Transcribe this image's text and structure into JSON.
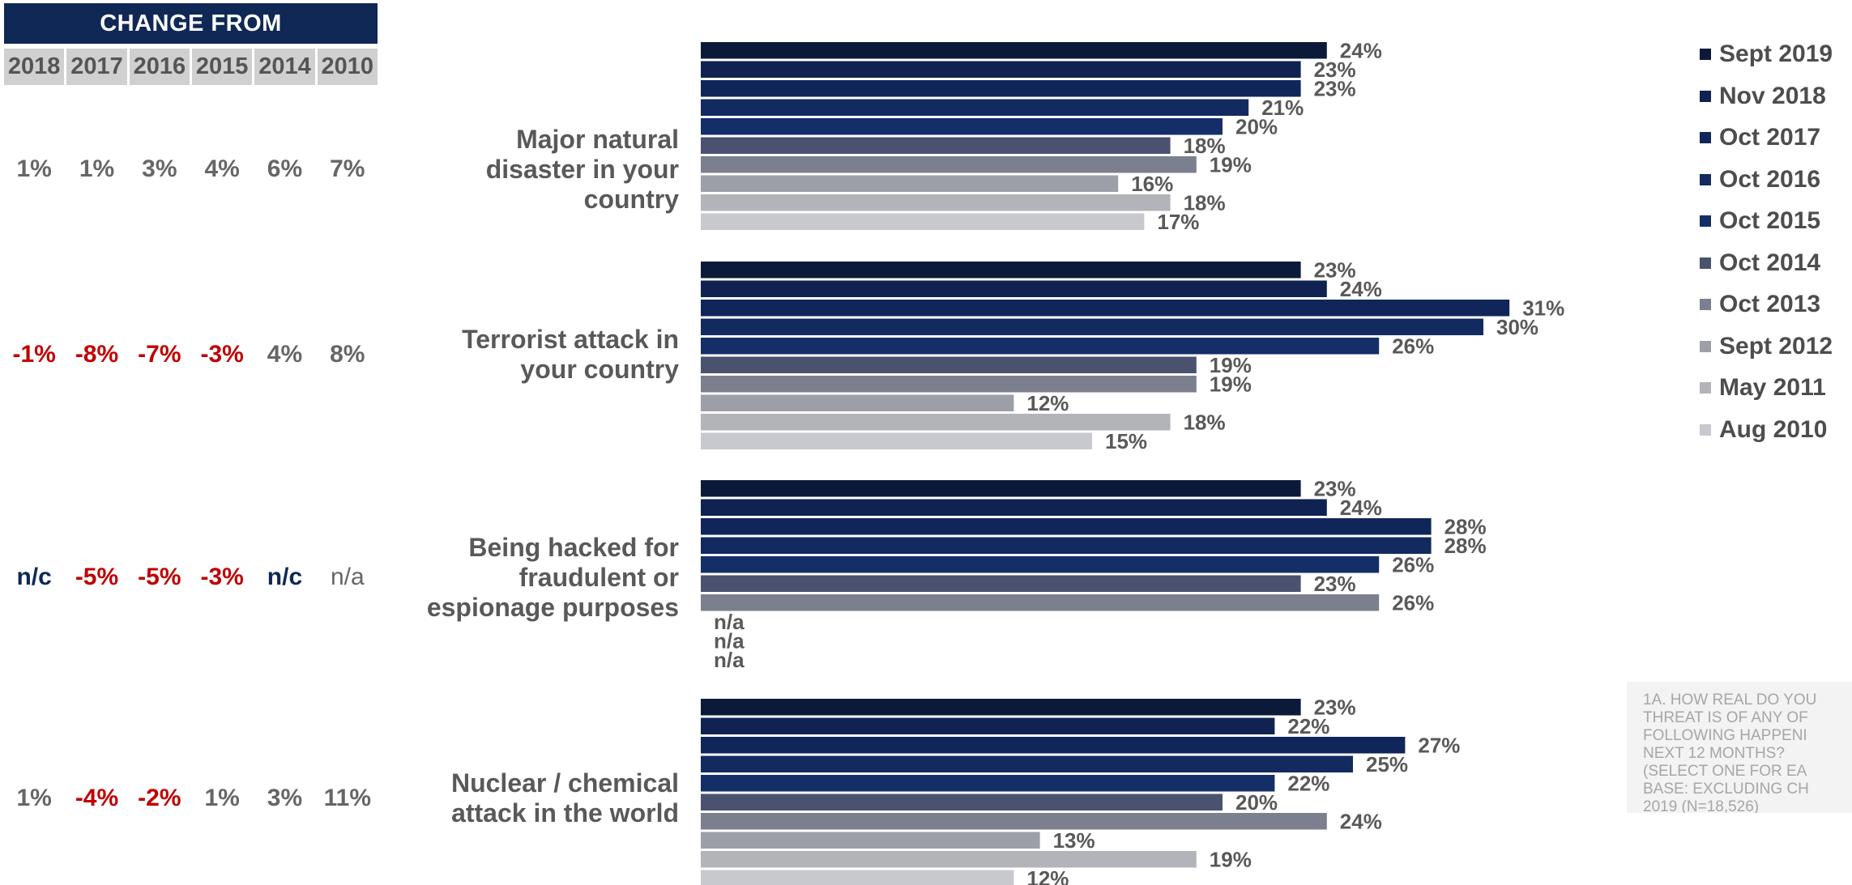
{
  "change_table": {
    "header": "CHANGE FROM",
    "years": [
      "2018",
      "2017",
      "2016",
      "2015",
      "2014",
      "2010"
    ],
    "rows": [
      {
        "cells": [
          {
            "text": "1%",
            "color": "#666666"
          },
          {
            "text": "1%",
            "color": "#666666"
          },
          {
            "text": "3%",
            "color": "#666666"
          },
          {
            "text": "4%",
            "color": "#666666"
          },
          {
            "text": "6%",
            "color": "#666666"
          },
          {
            "text": "7%",
            "color": "#666666"
          }
        ]
      },
      {
        "cells": [
          {
            "text": "-1%",
            "color": "#c00000"
          },
          {
            "text": "-8%",
            "color": "#c00000"
          },
          {
            "text": "-7%",
            "color": "#c00000"
          },
          {
            "text": "-3%",
            "color": "#c00000"
          },
          {
            "text": "4%",
            "color": "#666666"
          },
          {
            "text": "8%",
            "color": "#666666"
          }
        ]
      },
      {
        "cells": [
          {
            "text": "n/c",
            "color": "#0f2856"
          },
          {
            "text": "-5%",
            "color": "#c00000"
          },
          {
            "text": "-5%",
            "color": "#c00000"
          },
          {
            "text": "-3%",
            "color": "#c00000"
          },
          {
            "text": "n/c",
            "color": "#0f2856"
          },
          {
            "text": "n/a",
            "color": "#666666",
            "normal": true
          }
        ]
      },
      {
        "cells": [
          {
            "text": "1%",
            "color": "#666666"
          },
          {
            "text": "-4%",
            "color": "#c00000"
          },
          {
            "text": "-2%",
            "color": "#c00000"
          },
          {
            "text": "1%",
            "color": "#666666"
          },
          {
            "text": "3%",
            "color": "#666666"
          },
          {
            "text": "11%",
            "color": "#666666"
          }
        ]
      }
    ]
  },
  "chart_data": {
    "type": "bar",
    "orientation": "horizontal",
    "categories": [
      "Major natural disaster in your country",
      "Terrorist attack in your country",
      "Being hacked for fraudulent or espionage purposes",
      "Nuclear / chemical attack in the world"
    ],
    "category_lines": [
      [
        "Major natural",
        "disaster in your",
        "country"
      ],
      [
        "Terrorist attack in",
        "your country"
      ],
      [
        "Being hacked for",
        "fraudulent or",
        "espionage purposes"
      ],
      [
        "Nuclear / chemical",
        "attack in the world"
      ]
    ],
    "series": [
      {
        "name": "Sept 2019",
        "color": "#0c1a3a",
        "values": [
          24,
          23,
          23,
          23
        ]
      },
      {
        "name": "Nov 2018",
        "color": "#0f2252",
        "values": [
          23,
          24,
          24,
          22
        ]
      },
      {
        "name": "Oct 2017",
        "color": "#10265a",
        "values": [
          23,
          31,
          28,
          27
        ]
      },
      {
        "name": "Oct 2016",
        "color": "#122a60",
        "values": [
          21,
          30,
          28,
          25
        ]
      },
      {
        "name": "Oct 2015",
        "color": "#142e68",
        "values": [
          20,
          26,
          26,
          22
        ]
      },
      {
        "name": "Oct 2014",
        "color": "#4a5270",
        "values": [
          18,
          19,
          23,
          20
        ]
      },
      {
        "name": "Oct 2013",
        "color": "#7b7f8e",
        "values": [
          19,
          19,
          26,
          24
        ]
      },
      {
        "name": "Sept 2012",
        "color": "#9d9fa8",
        "values": [
          16,
          12,
          null,
          13
        ]
      },
      {
        "name": "May 2011",
        "color": "#b3b4ba",
        "values": [
          18,
          18,
          null,
          19
        ]
      },
      {
        "name": "Aug 2010",
        "color": "#c8c9ce",
        "values": [
          17,
          15,
          null,
          12
        ]
      }
    ],
    "missing_label": "n/a",
    "value_suffix": "%",
    "label_color": "#595959",
    "legend_position": "right"
  },
  "footnote": [
    "1A. HOW REAL DO YOU",
    "THREAT IS OF ANY OF",
    "FOLLOWING HAPPENI",
    "NEXT 12 MONTHS?",
    "(SELECT ONE FOR EA",
    "BASE: EXCLUDING CH",
    "2019 (N=18,526)"
  ]
}
